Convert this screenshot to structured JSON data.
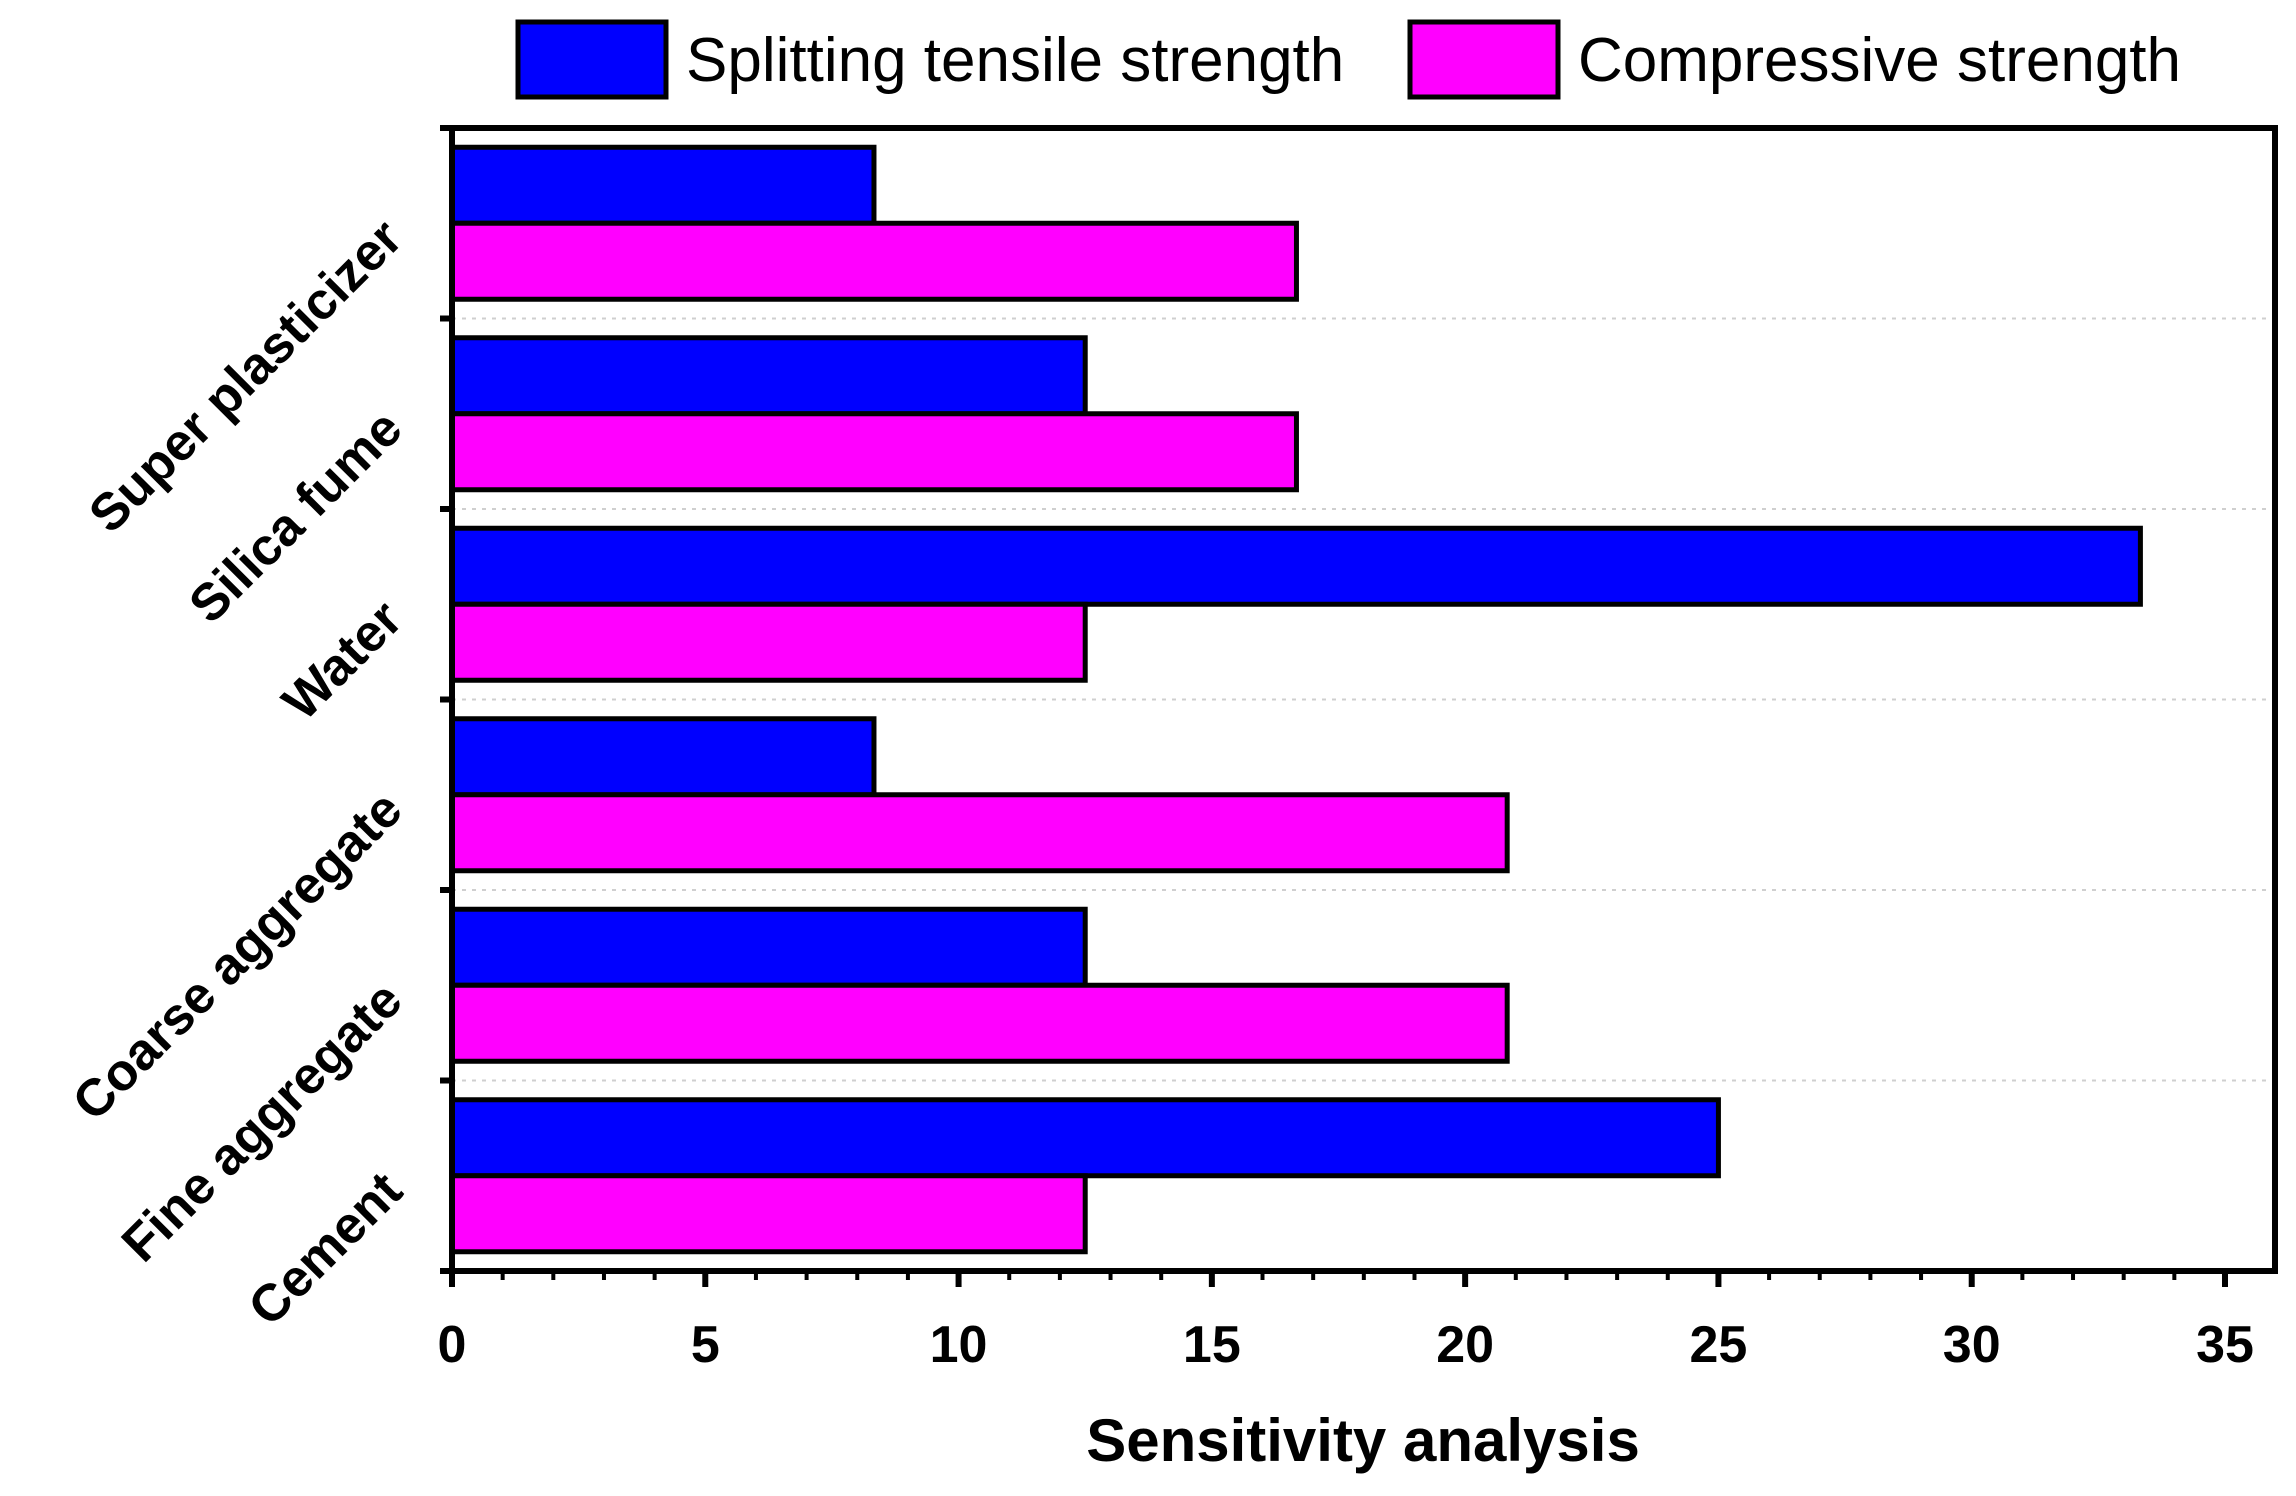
{
  "chart_data": {
    "type": "bar",
    "orientation": "horizontal",
    "title": "",
    "xlabel": "Sensitivity analysis",
    "ylabel": "",
    "xlim": [
      0,
      36
    ],
    "xticks": [
      0,
      5,
      10,
      15,
      20,
      25,
      30,
      35
    ],
    "grid": false,
    "legend_position": "top",
    "categories": [
      "Cement",
      "Fine aggregate",
      "Coarse aggregate",
      "Water",
      "Silica fume",
      "Super plasticizer"
    ],
    "series": [
      {
        "name": "Splitting tensile strength",
        "color": "#0000ff",
        "values": [
          25.0,
          12.5,
          8.33,
          33.33,
          12.5,
          8.33
        ]
      },
      {
        "name": "Compressive strength",
        "color": "#ff00ff",
        "values": [
          12.5,
          20.83,
          20.83,
          12.5,
          16.67,
          16.67
        ]
      }
    ]
  }
}
